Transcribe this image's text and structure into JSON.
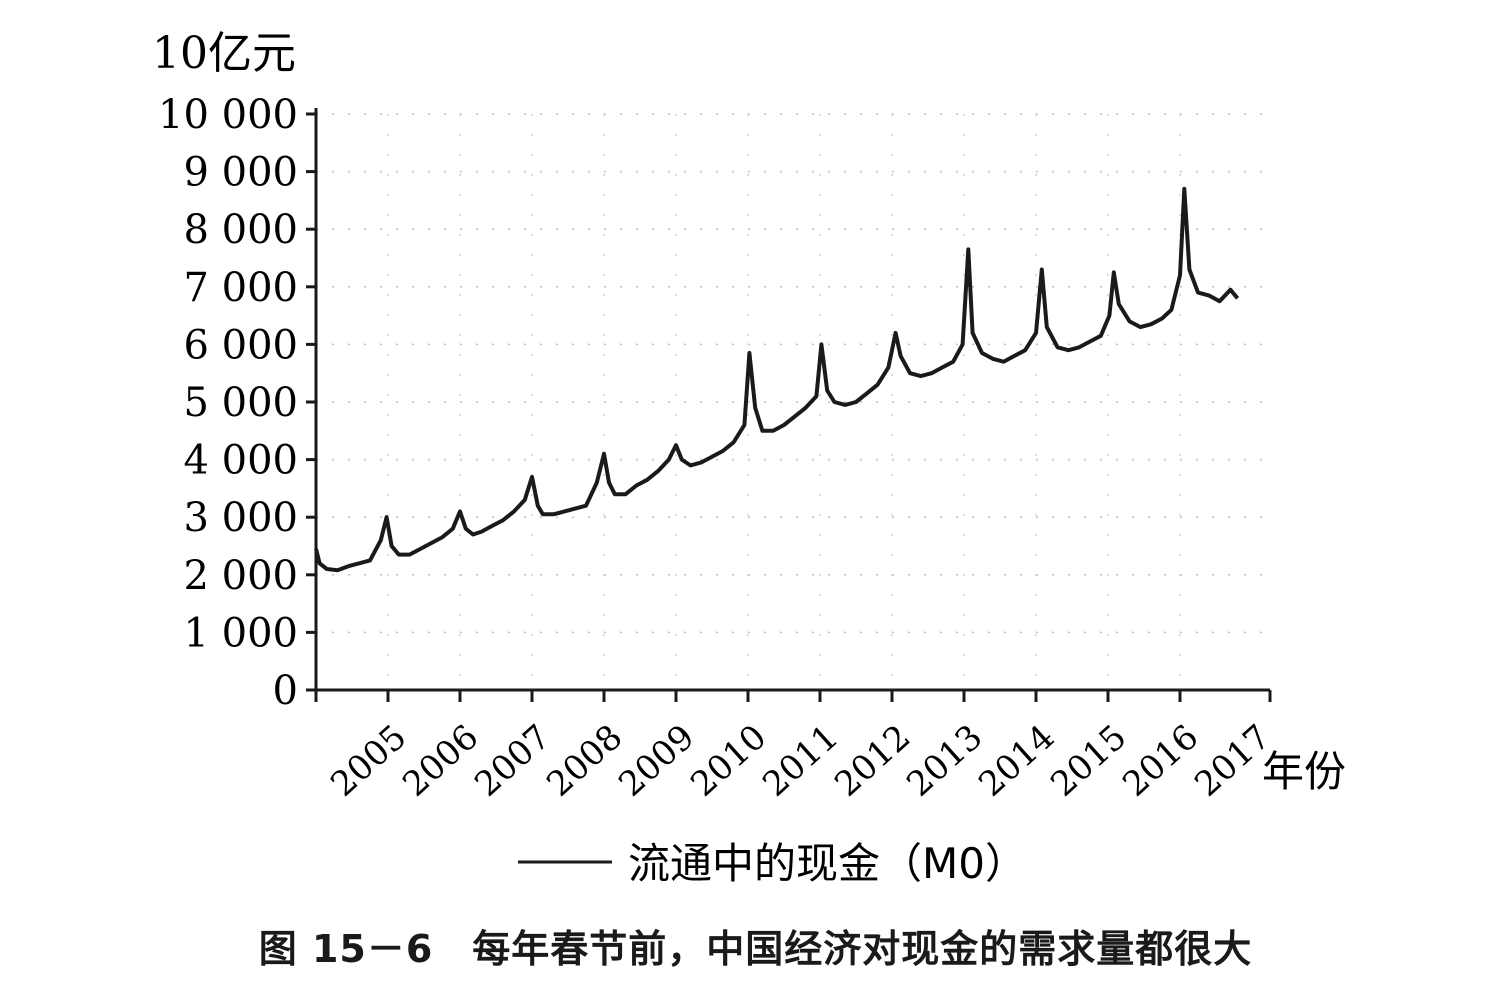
{
  "chart_data": {
    "type": "line",
    "ylabel": "10亿元",
    "xlabel": "年份",
    "ylim": [
      0,
      10000
    ],
    "yticks": [
      "0",
      "1 000",
      "2 000",
      "3 000",
      "4 000",
      "5 000",
      "6 000",
      "7 000",
      "8 000",
      "9 000",
      "10 000"
    ],
    "yticks_values": [
      0,
      1000,
      2000,
      3000,
      4000,
      5000,
      6000,
      7000,
      8000,
      9000,
      10000
    ],
    "xticks": [
      "2005",
      "2006",
      "2007",
      "2008",
      "2009",
      "2010",
      "2011",
      "2012",
      "2013",
      "2014",
      "2015",
      "2016",
      "2017"
    ],
    "grid": true,
    "legend_position": "bottom",
    "series": [
      {
        "name": "流通中的现金（M0）",
        "x": [
          2005.0,
          2005.05,
          2005.15,
          2005.3,
          2005.45,
          2005.6,
          2005.75,
          2005.9,
          2005.98,
          2006.05,
          2006.15,
          2006.3,
          2006.45,
          2006.6,
          2006.75,
          2006.9,
          2007.0,
          2007.08,
          2007.18,
          2007.3,
          2007.45,
          2007.6,
          2007.75,
          2007.9,
          2008.0,
          2008.08,
          2008.15,
          2008.3,
          2008.45,
          2008.6,
          2008.75,
          2008.9,
          2009.0,
          2009.07,
          2009.15,
          2009.3,
          2009.45,
          2009.6,
          2009.75,
          2009.9,
          2010.0,
          2010.08,
          2010.2,
          2010.35,
          2010.5,
          2010.65,
          2010.8,
          2010.95,
          2011.02,
          2011.1,
          2011.2,
          2011.35,
          2011.5,
          2011.65,
          2011.8,
          2011.95,
          2012.02,
          2012.1,
          2012.2,
          2012.35,
          2012.5,
          2012.65,
          2012.8,
          2012.95,
          2013.05,
          2013.12,
          2013.25,
          2013.4,
          2013.55,
          2013.7,
          2013.85,
          2013.98,
          2014.06,
          2014.12,
          2014.25,
          2014.4,
          2014.55,
          2014.7,
          2014.85,
          2015.0,
          2015.08,
          2015.15,
          2015.3,
          2015.45,
          2015.6,
          2015.75,
          2015.9,
          2016.02,
          2016.08,
          2016.15,
          2016.3,
          2016.45,
          2016.6,
          2016.75,
          2016.88,
          2017.0,
          2017.06,
          2017.13,
          2017.25,
          2017.4,
          2017.55,
          2017.7,
          2017.8
        ],
        "values": [
          2450,
          2200,
          2100,
          2080,
          2150,
          2200,
          2250,
          2600,
          3000,
          2500,
          2350,
          2350,
          2450,
          2550,
          2650,
          2800,
          3100,
          2800,
          2700,
          2750,
          2850,
          2950,
          3100,
          3300,
          3700,
          3200,
          3050,
          3050,
          3100,
          3150,
          3200,
          3600,
          4100,
          3600,
          3400,
          3400,
          3550,
          3650,
          3800,
          4000,
          4250,
          4000,
          3900,
          3950,
          4050,
          4150,
          4300,
          4600,
          5850,
          4900,
          4500,
          4500,
          4600,
          4750,
          4900,
          5100,
          6000,
          5200,
          5000,
          4950,
          5000,
          5150,
          5300,
          5600,
          6200,
          5800,
          5500,
          5450,
          5500,
          5600,
          5700,
          6000,
          7650,
          6200,
          5850,
          5750,
          5700,
          5800,
          5900,
          6200,
          7300,
          6300,
          5950,
          5900,
          5950,
          6050,
          6150,
          6500,
          7250,
          6700,
          6400,
          6300,
          6350,
          6450,
          6600,
          7200,
          8700,
          7300,
          6900,
          6850,
          6750,
          6950,
          6800
        ]
      }
    ]
  },
  "legend": {
    "label": "流通中的现金（M0）"
  },
  "caption": "图 15－6　每年春节前，中国经济对现金的需求量都很大"
}
